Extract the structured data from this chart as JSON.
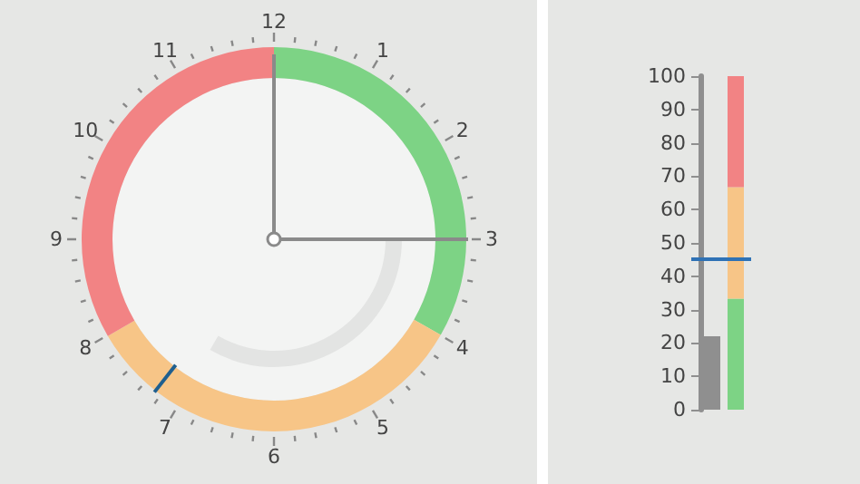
{
  "chart_data": [
    {
      "type": "donut",
      "categories": [
        null,
        null,
        null
      ],
      "values": [
        33.3,
        33.3,
        33.4
      ],
      "colors": [
        "#7dd385",
        "#f7c587",
        "#f28384"
      ],
      "annotations": [
        "12",
        "1",
        "2",
        "3",
        "4",
        "5",
        "6",
        "7",
        "8",
        "9",
        "10",
        "11"
      ]
    },
    {
      "type": "bar",
      "stacked": true,
      "categories": [
        null,
        null
      ],
      "series": [
        {
          "color": "#8f8f8f",
          "values": [
            22,
            null
          ]
        },
        {
          "color": "#7dd385",
          "values": [
            null,
            33.3
          ]
        },
        {
          "color": "#f7c587",
          "values": [
            null,
            33.4
          ]
        },
        {
          "color": "#f28384",
          "values": [
            null,
            33.3
          ]
        }
      ],
      "ylim": [
        0,
        100
      ],
      "yticks": [
        0,
        10,
        20,
        30,
        40,
        50,
        60,
        70,
        80,
        90,
        100
      ],
      "ref_lines": [
        {
          "axis": "y",
          "value": 45,
          "color": "#2f72b5"
        }
      ]
    }
  ]
}
